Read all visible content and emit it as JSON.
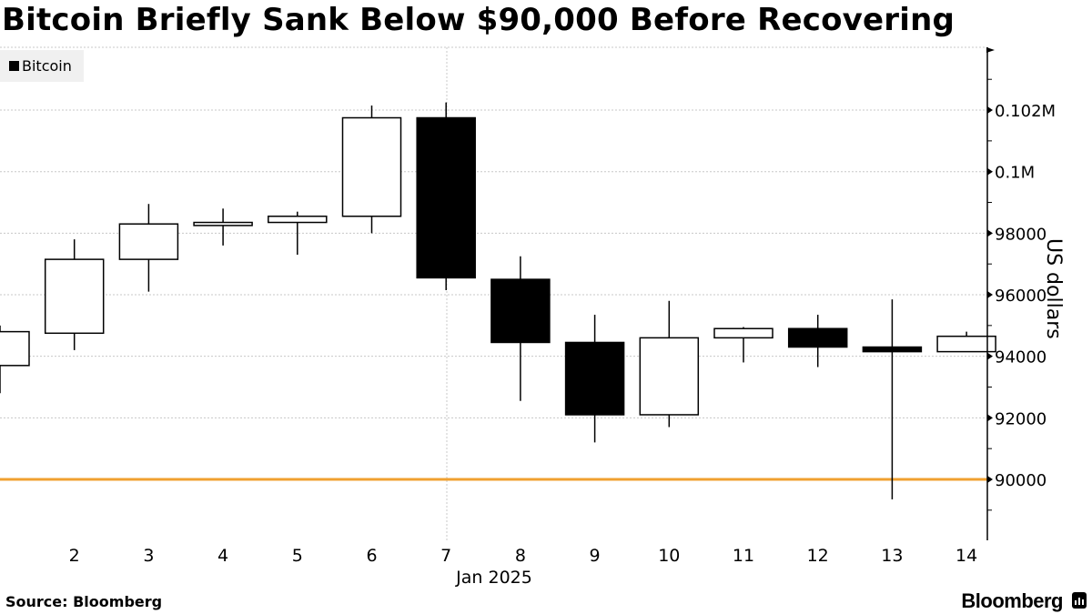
{
  "header": {
    "title": "Bitcoin Briefly Sank Below $90,000 Before Recovering"
  },
  "legend": {
    "items": [
      {
        "label": "Bitcoin",
        "color": "#000000"
      }
    ]
  },
  "footer": {
    "source": "Source: Bloomberg",
    "brand": "Bloomberg"
  },
  "colors": {
    "up_fill": "#ffffff",
    "down_fill": "#000000",
    "outline": "#000000",
    "reference_line": "#f0a030",
    "grid": "#c8c8c8"
  },
  "chart_data": {
    "type": "candlestick",
    "title": "Bitcoin Briefly Sank Below $90,000 Before Recovering",
    "xlabel": "Jan 2025",
    "ylabel": "US dollars",
    "ylim": [
      88000,
      104000
    ],
    "y_ticks": [
      90000,
      92000,
      94000,
      96000,
      98000,
      100000,
      102000
    ],
    "y_tick_labels": [
      "90000",
      "92000",
      "94000",
      "96000",
      "98000",
      "0.1M",
      "0.102M"
    ],
    "x_tick_labels": [
      "2",
      "3",
      "4",
      "5",
      "6",
      "7",
      "8",
      "9",
      "10",
      "11",
      "12",
      "13",
      "14"
    ],
    "x_axis_sublabel": "Jan 2025",
    "grid": true,
    "legend_position": "top-left",
    "reference_line": {
      "value": 90000,
      "color": "#f0a030"
    },
    "series": [
      {
        "name": "Bitcoin",
        "candles": [
          {
            "day": "1",
            "open": 93700,
            "high": 95000,
            "low": 92800,
            "close": 94800
          },
          {
            "day": "2",
            "open": 94750,
            "high": 97800,
            "low": 94200,
            "close": 97150
          },
          {
            "day": "3",
            "open": 97150,
            "high": 98950,
            "low": 96100,
            "close": 98300
          },
          {
            "day": "4",
            "open": 98250,
            "high": 98800,
            "low": 97600,
            "close": 98350
          },
          {
            "day": "5",
            "open": 98350,
            "high": 98700,
            "low": 97300,
            "close": 98550
          },
          {
            "day": "6",
            "open": 98550,
            "high": 102150,
            "low": 98000,
            "close": 101750
          },
          {
            "day": "7",
            "open": 101750,
            "high": 102250,
            "low": 96150,
            "close": 96550
          },
          {
            "day": "8",
            "open": 96500,
            "high": 97250,
            "low": 92550,
            "close": 94450
          },
          {
            "day": "9",
            "open": 94450,
            "high": 95350,
            "low": 91200,
            "close": 92100
          },
          {
            "day": "10",
            "open": 92100,
            "high": 95800,
            "low": 91700,
            "close": 94600
          },
          {
            "day": "11",
            "open": 94600,
            "high": 94950,
            "low": 93800,
            "close": 94900
          },
          {
            "day": "12",
            "open": 94900,
            "high": 95350,
            "low": 93650,
            "close": 94300
          },
          {
            "day": "13",
            "open": 94300,
            "high": 95850,
            "low": 89350,
            "close": 94150
          },
          {
            "day": "14",
            "open": 94150,
            "high": 94800,
            "low": 94150,
            "close": 94650
          }
        ]
      }
    ]
  }
}
